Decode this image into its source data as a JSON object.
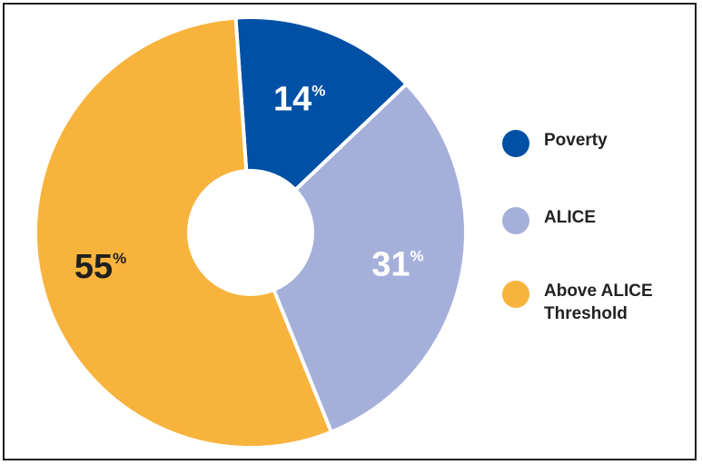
{
  "chart_data": {
    "type": "pie",
    "donut": true,
    "title": "",
    "slices": [
      {
        "label": "Poverty",
        "value": 14,
        "display": "14",
        "unit": "%",
        "color": "#0050a5",
        "text_color": "#ffffff"
      },
      {
        "label": "ALICE",
        "value": 31,
        "display": "31",
        "unit": "%",
        "color": "#a5b0da",
        "text_color": "#ffffff"
      },
      {
        "label": "Above ALICE Threshold",
        "value": 55,
        "display": "55",
        "unit": "%",
        "color": "#f8b33c",
        "text_color": "#1f1f1f"
      }
    ],
    "legend": {
      "position": "right",
      "items": [
        {
          "label_line1": "Poverty",
          "label_line2": "",
          "color": "#0050a5"
        },
        {
          "label_line1": "ALICE",
          "label_line2": "",
          "color": "#a5b0da"
        },
        {
          "label_line1": "Above ALICE",
          "label_line2": "Threshold",
          "color": "#f8b33c"
        }
      ]
    }
  }
}
